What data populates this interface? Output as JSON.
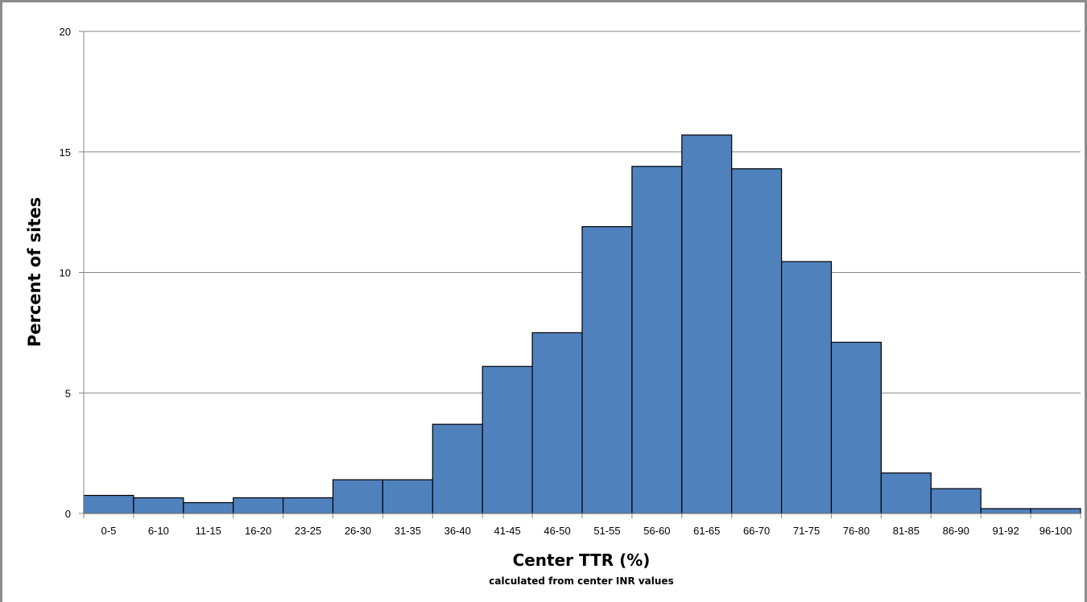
{
  "chart_data": {
    "type": "bar",
    "title": "",
    "xlabel": "Center TTR (%)",
    "xlabel_note": "calculated from center INR values",
    "ylabel": "Percent of sites",
    "ylim": [
      0,
      20
    ],
    "yticks": [
      0,
      5,
      10,
      15,
      20
    ],
    "grid": true,
    "bar_color": "#4f81bd",
    "categories": [
      "0-5",
      "6-10",
      "11-15",
      "16-20",
      "23-25",
      "26-30",
      "31-35",
      "36-40",
      "41-45",
      "46-50",
      "51-55",
      "56-60",
      "61-65",
      "66-70",
      "71-75",
      "76-80",
      "81-85",
      "86-90",
      "91-92",
      "96-100"
    ],
    "values": [
      0.75,
      0.65,
      0.45,
      0.65,
      0.65,
      1.4,
      1.4,
      3.7,
      6.1,
      7.5,
      11.9,
      14.4,
      15.7,
      14.3,
      10.45,
      7.1,
      1.68,
      1.03,
      0.2,
      0.2
    ]
  }
}
